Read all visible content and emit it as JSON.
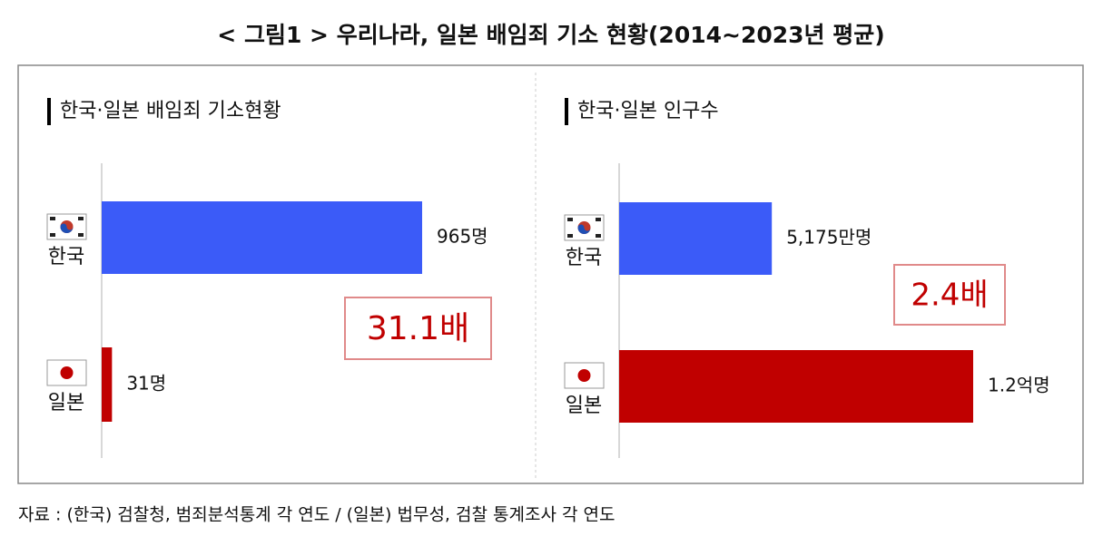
{
  "title": "< 그림1 > 우리나라, 일본 배임죄 기소 현황(2014~2023년 평균)",
  "chart_data": [
    {
      "type": "bar",
      "orientation": "horizontal",
      "title": "한국·일본 배임죄 기소현황",
      "categories": [
        "한국",
        "일본"
      ],
      "values": [
        965,
        31
      ],
      "value_labels": [
        "965명",
        "31명"
      ],
      "colors": [
        "#3b5bf8",
        "#c00000"
      ],
      "annotation": "31.1배"
    },
    {
      "type": "bar",
      "orientation": "horizontal",
      "title": "한국·일본 인구수",
      "categories": [
        "한국",
        "일본"
      ],
      "values": [
        5175,
        12000
      ],
      "value_labels": [
        "5,175만명",
        "1.2억명"
      ],
      "colors": [
        "#3b5bf8",
        "#c00000"
      ],
      "annotation": "2.4배"
    }
  ],
  "source": "자료 : (한국) 검찰청, 범죄분석통계 각 연도 / (일본) 법무성, 검찰 통계조사 각 연도"
}
